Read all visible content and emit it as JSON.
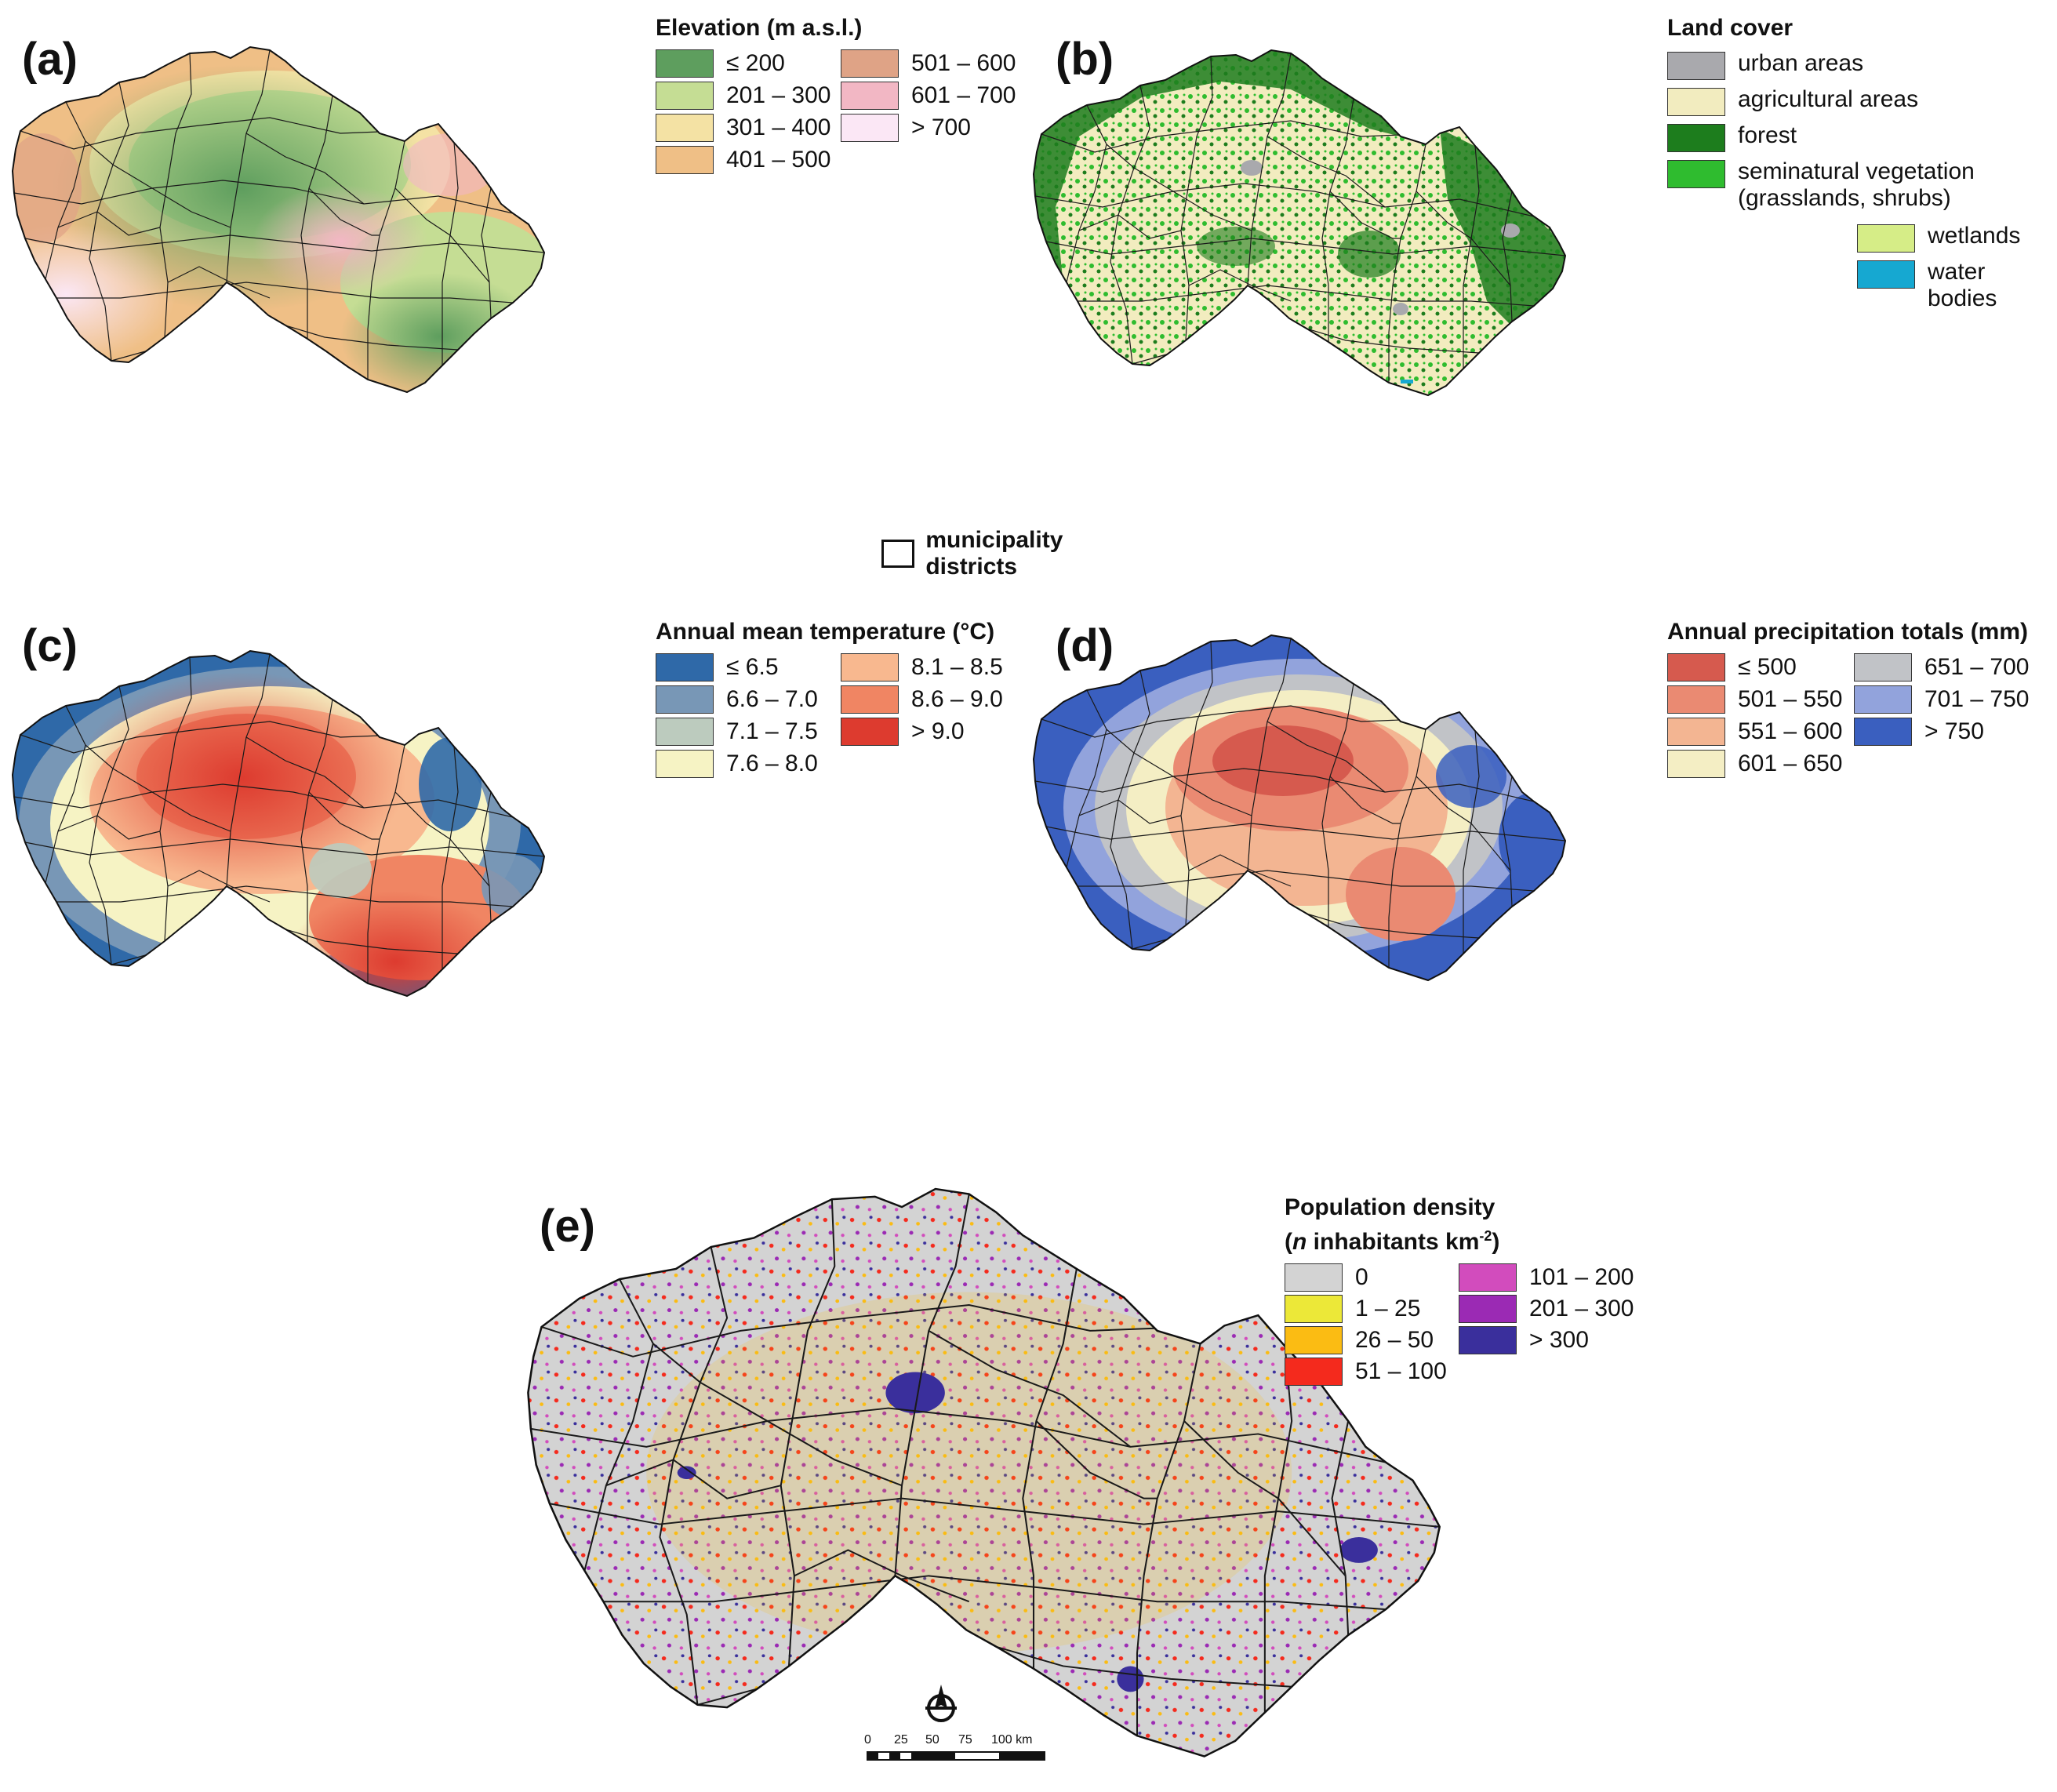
{
  "panels": {
    "a": {
      "letter": "(a)",
      "legend_title": "Elevation (m a.s.l.)",
      "classes": [
        {
          "label": "≤ 200",
          "color": "#5e9e5e"
        },
        {
          "label": "201 – 300",
          "color": "#c5dd94"
        },
        {
          "label": "301 – 400",
          "color": "#f4e2a4"
        },
        {
          "label": "401 – 500",
          "color": "#efbf86"
        },
        {
          "label": "501 – 600",
          "color": "#dfa386"
        },
        {
          "label": "601 – 700",
          "color": "#f2b7c4"
        },
        {
          "label": "> 700",
          "color": "#fbe7f5"
        }
      ],
      "boundary_label": "municipality districts"
    },
    "b": {
      "letter": "(b)",
      "legend_title": "Land cover",
      "classes": [
        {
          "label": "urban areas",
          "color": "#a9a9ad"
        },
        {
          "label": "agricultural areas",
          "color": "#f2ecbf"
        },
        {
          "label": "forest",
          "color": "#1d7d1d"
        },
        {
          "label": "seminatural vegetation",
          "label2": "(grasslands, shrubs)",
          "color": "#2fbc2f"
        },
        {
          "label": "wetlands",
          "color": "#d6ed87"
        },
        {
          "label": "water bodies",
          "color": "#16a8d1"
        }
      ]
    },
    "c": {
      "letter": "(c)",
      "legend_title": "Annual mean temperature  (°C)",
      "classes": [
        {
          "label": "≤ 6.5",
          "color": "#2f69a8"
        },
        {
          "label": "6.6 – 7.0",
          "color": "#7897b6"
        },
        {
          "label": "7.1 – 7.5",
          "color": "#bccbbe"
        },
        {
          "label": "7.6 – 8.0",
          "color": "#f6f3c4"
        },
        {
          "label": "8.1 – 8.5",
          "color": "#f8b88f"
        },
        {
          "label": "8.6 – 9.0",
          "color": "#f08563"
        },
        {
          "label": "> 9.0",
          "color": "#dd3b2f"
        }
      ]
    },
    "d": {
      "letter": "(d)",
      "legend_title": "Annual precipitation totals (mm)",
      "classes": [
        {
          "label": "≤ 500",
          "color": "#d65a4e"
        },
        {
          "label": "501 – 550",
          "color": "#ea8a72"
        },
        {
          "label": "551 – 600",
          "color": "#f3b592"
        },
        {
          "label": "601 – 650",
          "color": "#f4eec4"
        },
        {
          "label": "651 – 700",
          "color": "#c1c3c7"
        },
        {
          "label": "701 – 750",
          "color": "#92a3dc"
        },
        {
          "label": "> 750",
          "color": "#3a5fbf"
        }
      ]
    },
    "e": {
      "letter": "(e)",
      "legend_title_1": "Population density",
      "legend_title_2a": "n",
      "legend_title_2b": " inhabitants km",
      "legend_title_sup": "2",
      "classes": [
        {
          "label": "0",
          "color": "#d3d3d3"
        },
        {
          "label": "1 – 25",
          "color": "#ece838"
        },
        {
          "label": "26 – 50",
          "color": "#fbbc13"
        },
        {
          "label": "51 – 100",
          "color": "#f42a1d"
        },
        {
          "label": "101 – 200",
          "color": "#d24cbd"
        },
        {
          "label": "201 – 300",
          "color": "#9b2ab4"
        },
        {
          "label": "> 300",
          "color": "#3a2f9c"
        }
      ],
      "scale_ticks": [
        "0",
        "25",
        "50",
        "75",
        "100 km"
      ]
    }
  }
}
